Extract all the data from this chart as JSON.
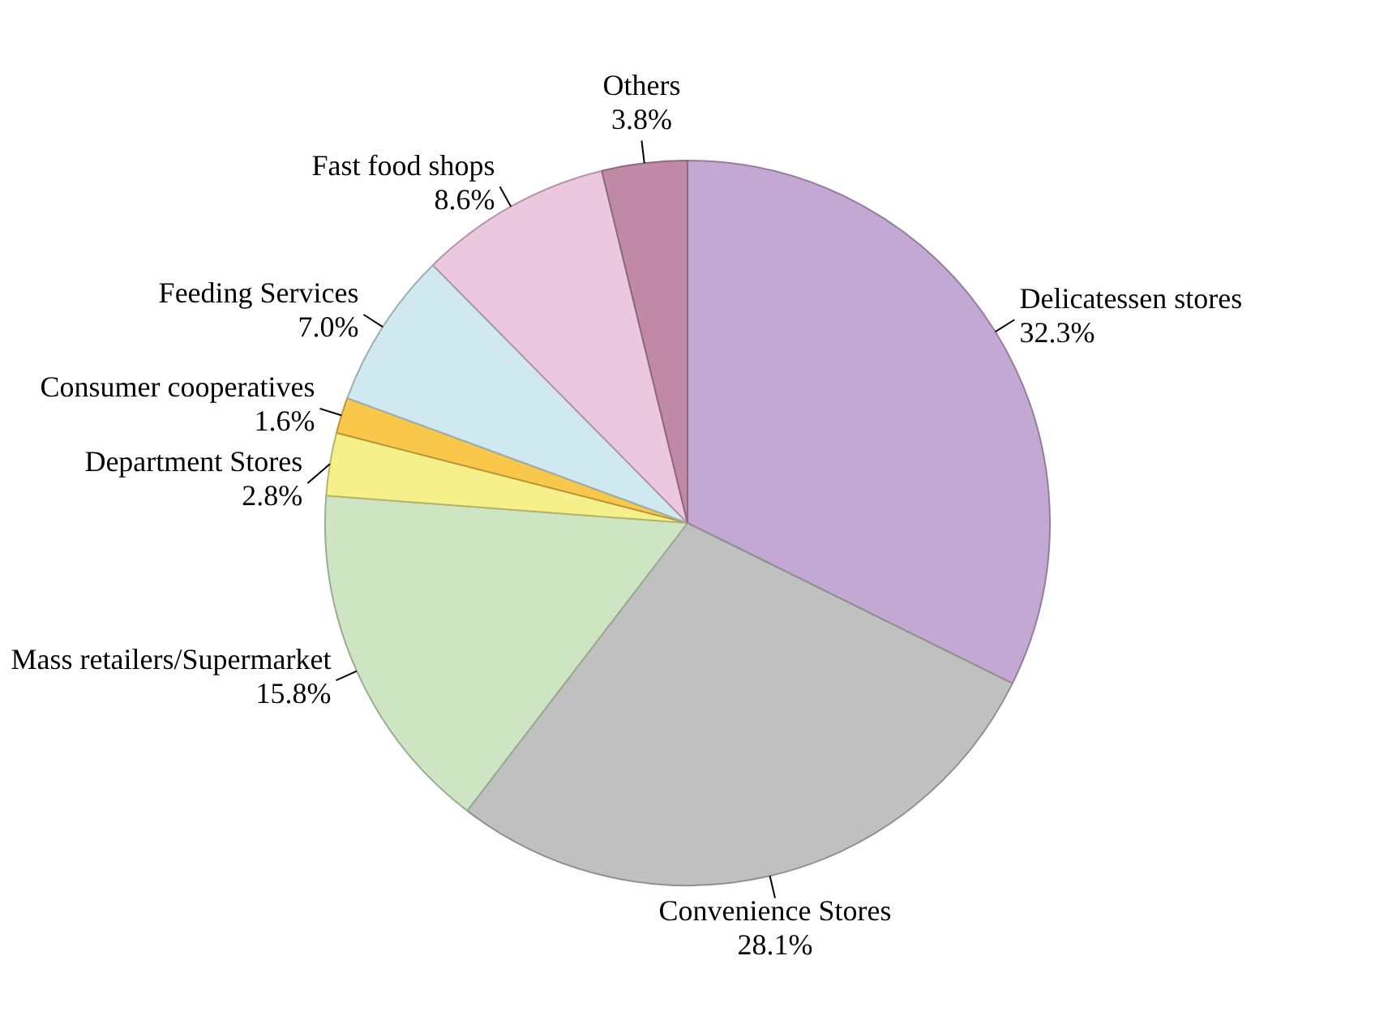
{
  "chart_data": {
    "type": "pie",
    "categories": [
      "Delicatessen stores",
      "Convenience Stores",
      "Mass retailers/Supermarket",
      "Department Stores",
      "Consumer cooperatives",
      "Feeding Services",
      "Fast food shops",
      "Others"
    ],
    "values": [
      32.3,
      28.1,
      15.8,
      2.8,
      1.6,
      7.0,
      8.6,
      3.8
    ],
    "value_labels": [
      "32.3%",
      "28.1%",
      "15.8%",
      "2.8%",
      "1.6%",
      "7.0%",
      "8.6%",
      "3.8%"
    ],
    "colors": [
      "#c4a8d4",
      "#c0c0c0",
      "#cde5c2",
      "#f6f08a",
      "#f9c84a",
      "#d0e9f0",
      "#ecc8de",
      "#c08aa6"
    ],
    "legend": false
  }
}
